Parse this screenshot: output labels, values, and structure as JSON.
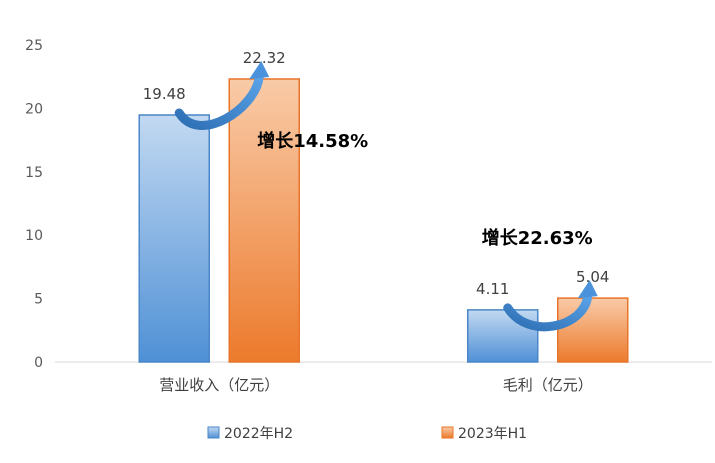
{
  "chart_data": {
    "type": "bar",
    "categories": [
      "营业收入（亿元）",
      "毛利（亿元）"
    ],
    "series": [
      {
        "name": "2022年H2",
        "values": [
          19.48,
          4.11
        ],
        "color": "#5b9bd5"
      },
      {
        "name": "2023年H1",
        "values": [
          22.32,
          5.04
        ],
        "color": "#ed7d31"
      }
    ],
    "data_labels": [
      [
        "19.48",
        "4.11"
      ],
      [
        "22.32",
        "5.04"
      ]
    ],
    "annotations": [
      "增长14.58%",
      "增长22.63%"
    ],
    "yticks": [
      "0",
      "5",
      "10",
      "15",
      "20",
      "25"
    ],
    "ylim": [
      0,
      25
    ],
    "grid": false,
    "legend_position": "bottom"
  }
}
